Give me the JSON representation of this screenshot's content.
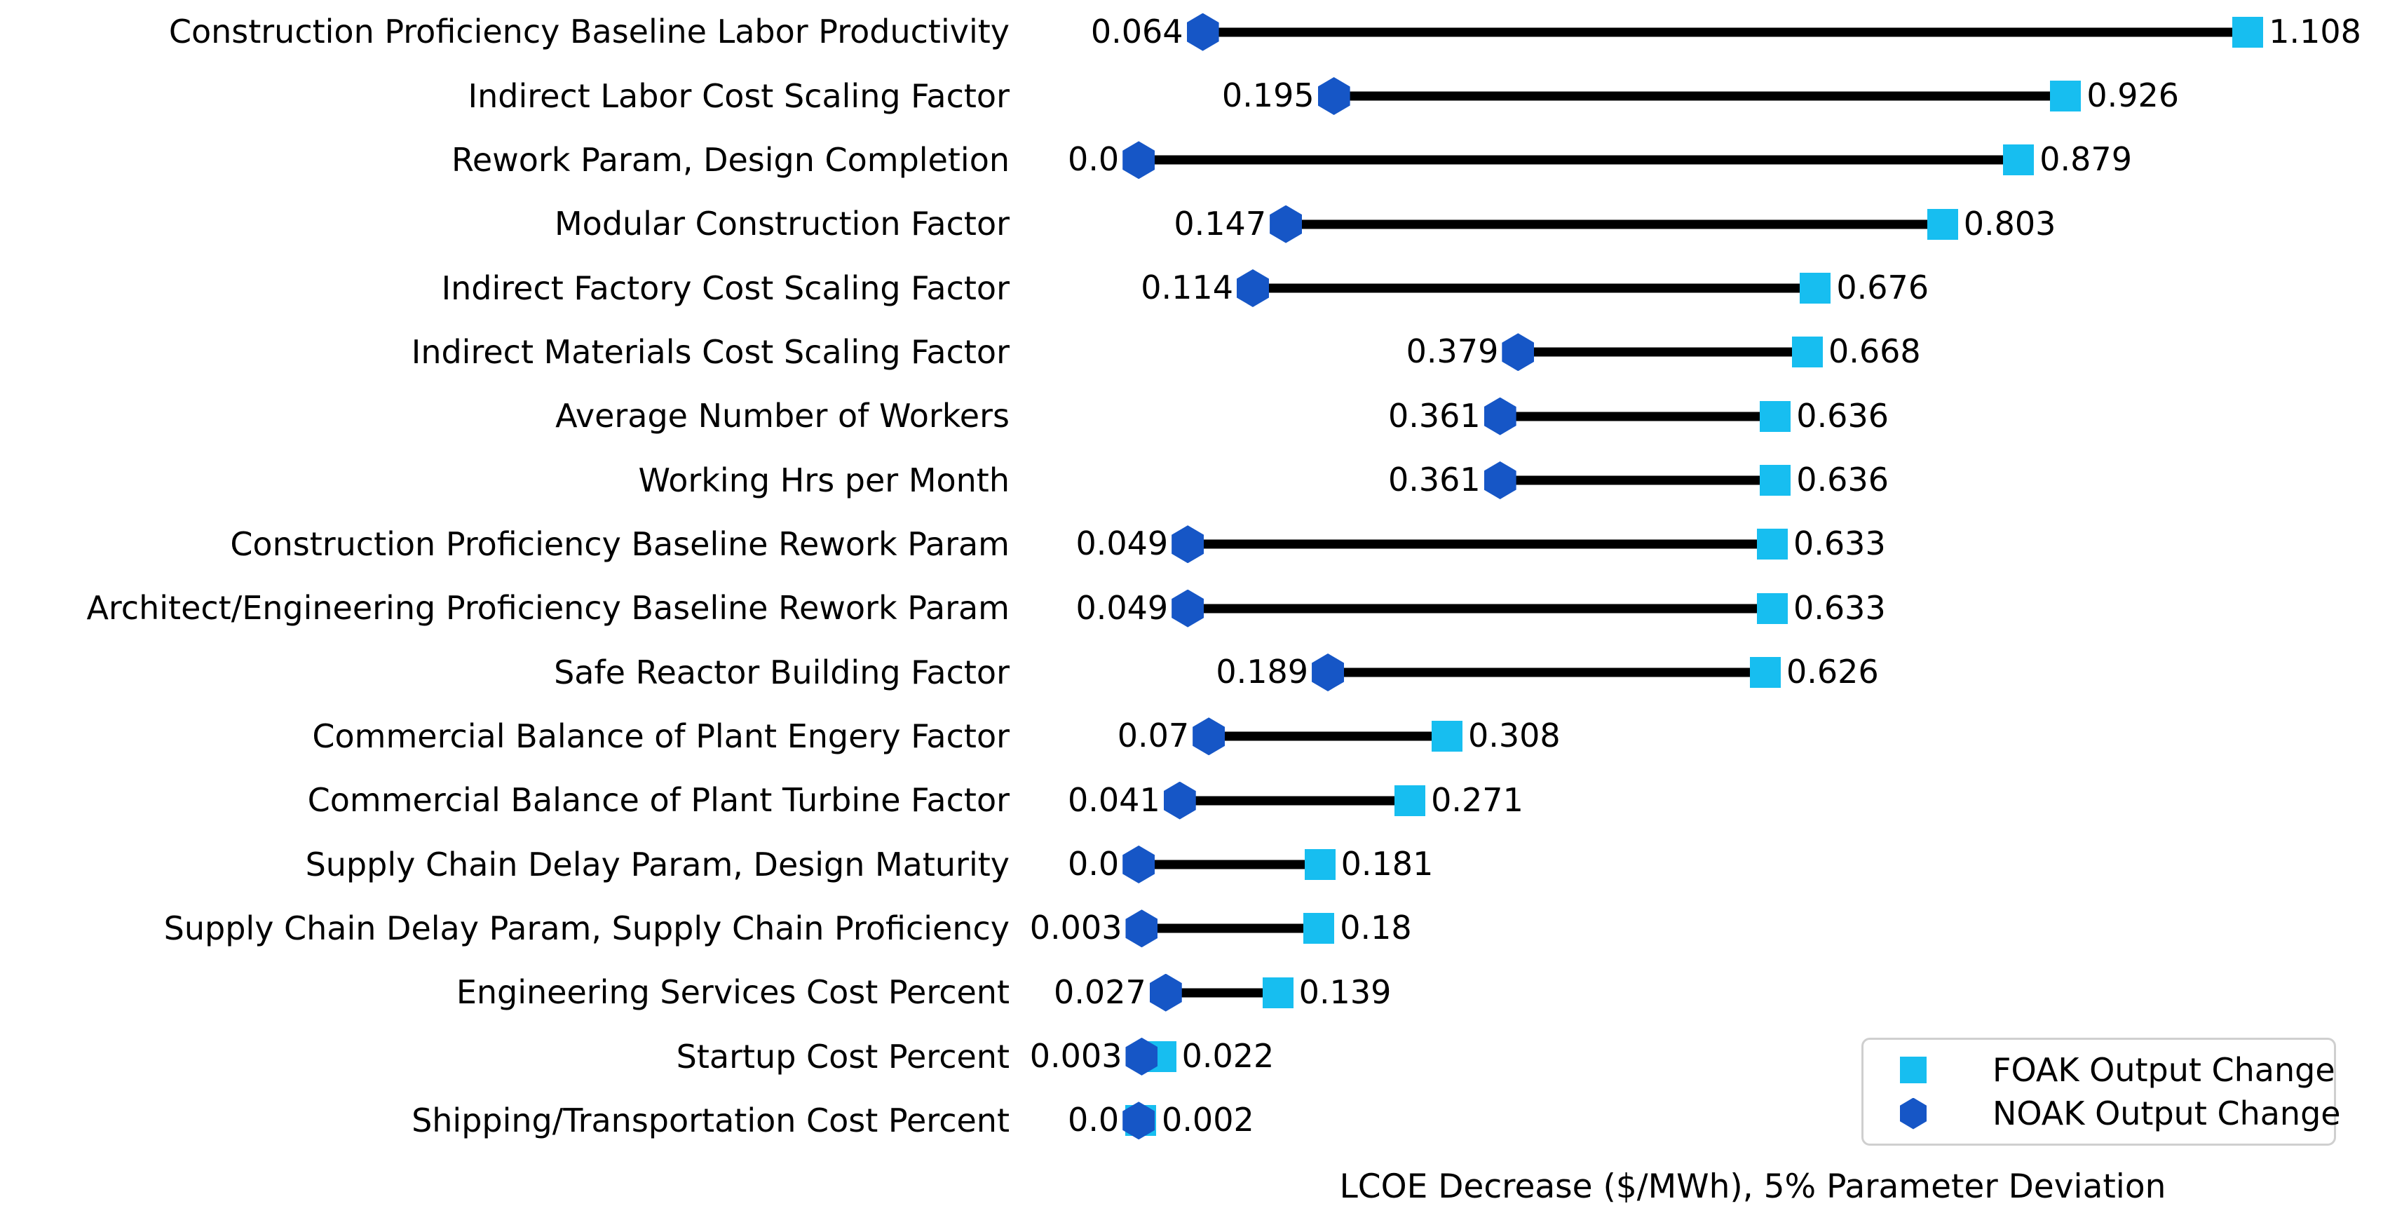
{
  "figure": {
    "background": "#ffffff",
    "line_color": "#000000",
    "legend": {
      "items": [
        {
          "label": "FOAK Output Change",
          "marker": "square-icon",
          "color": "#17BEF0"
        },
        {
          "label": "NOAK Output Change",
          "marker": "hexagon-icon",
          "color": "#1656C6"
        }
      ]
    }
  },
  "chart_data": {
    "type": "dumbbell",
    "orientation": "horizontal",
    "title": "",
    "xlabel": "LCOE Decrease ($/MWh), 5% Parameter Deviation",
    "ylabel": "",
    "x_range": [
      -0.108,
      1.243
    ],
    "grid": false,
    "legend_position": "lower right",
    "categories": [
      "Construction Proficiency Baseline Labor Productivity",
      "Indirect Labor Cost Scaling Factor",
      "Rework Param, Design Completion",
      "Modular Construction Factor",
      "Indirect Factory Cost Scaling Factor",
      "Indirect Materials Cost Scaling Factor",
      "Average Number of Workers",
      "Working Hrs per Month",
      "Construction Proficiency Baseline Rework Param",
      "Architect/Engineering Proficiency Baseline Rework Param",
      "Safe Reactor Building Factor",
      "Commercial Balance of Plant Engery Factor",
      "Commercial Balance of Plant Turbine Factor",
      "Supply Chain Delay Param, Design Maturity",
      "Supply Chain Delay Param, Supply Chain Proficiency",
      "Engineering Services Cost Percent",
      "Startup Cost Percent",
      "Shipping/Transportation Cost Percent"
    ],
    "series": [
      {
        "name": "NOAK Output Change",
        "marker": "hexagon",
        "color": "#1656C6",
        "values": [
          0.064,
          0.195,
          0.0,
          0.147,
          0.114,
          0.379,
          0.361,
          0.361,
          0.049,
          0.049,
          0.189,
          0.07,
          0.041,
          0.0,
          0.003,
          0.027,
          0.003,
          0.0
        ]
      },
      {
        "name": "FOAK Output Change",
        "marker": "square",
        "color": "#17BEF0",
        "values": [
          1.108,
          0.926,
          0.879,
          0.803,
          0.676,
          0.668,
          0.636,
          0.636,
          0.633,
          0.633,
          0.626,
          0.308,
          0.271,
          0.181,
          0.18,
          0.139,
          0.022,
          0.002
        ]
      }
    ],
    "rows": [
      {
        "label": "Construction Proficiency Baseline Labor Productivity",
        "noak": "0.064",
        "foak": "1.108"
      },
      {
        "label": "Indirect Labor Cost Scaling Factor",
        "noak": "0.195",
        "foak": "0.926"
      },
      {
        "label": "Rework Param, Design Completion",
        "noak": "0.0",
        "foak": "0.879"
      },
      {
        "label": "Modular Construction Factor",
        "noak": "0.147",
        "foak": "0.803"
      },
      {
        "label": "Indirect Factory Cost Scaling Factor",
        "noak": "0.114",
        "foak": "0.676"
      },
      {
        "label": "Indirect Materials Cost Scaling Factor",
        "noak": "0.379",
        "foak": "0.668"
      },
      {
        "label": "Average Number of Workers",
        "noak": "0.361",
        "foak": "0.636"
      },
      {
        "label": "Working Hrs per Month",
        "noak": "0.361",
        "foak": "0.636"
      },
      {
        "label": "Construction Proficiency Baseline Rework Param",
        "noak": "0.049",
        "foak": "0.633"
      },
      {
        "label": "Architect/Engineering Proficiency Baseline Rework Param",
        "noak": "0.049",
        "foak": "0.633"
      },
      {
        "label": "Safe Reactor Building Factor",
        "noak": "0.189",
        "foak": "0.626"
      },
      {
        "label": "Commercial Balance of Plant Engery Factor",
        "noak": "0.07",
        "foak": "0.308"
      },
      {
        "label": "Commercial Balance of Plant Turbine Factor",
        "noak": "0.041",
        "foak": "0.271"
      },
      {
        "label": "Supply Chain Delay Param, Design Maturity",
        "noak": "0.0",
        "foak": "0.181"
      },
      {
        "label": "Supply Chain Delay Param, Supply Chain Proficiency",
        "noak": "0.003",
        "foak": "0.18"
      },
      {
        "label": "Engineering Services Cost Percent",
        "noak": "0.027",
        "foak": "0.139"
      },
      {
        "label": "Startup Cost Percent",
        "noak": "0.003",
        "foak": "0.022"
      },
      {
        "label": "Shipping/Transportation Cost Percent",
        "noak": "0.0",
        "foak": "0.002"
      }
    ]
  }
}
